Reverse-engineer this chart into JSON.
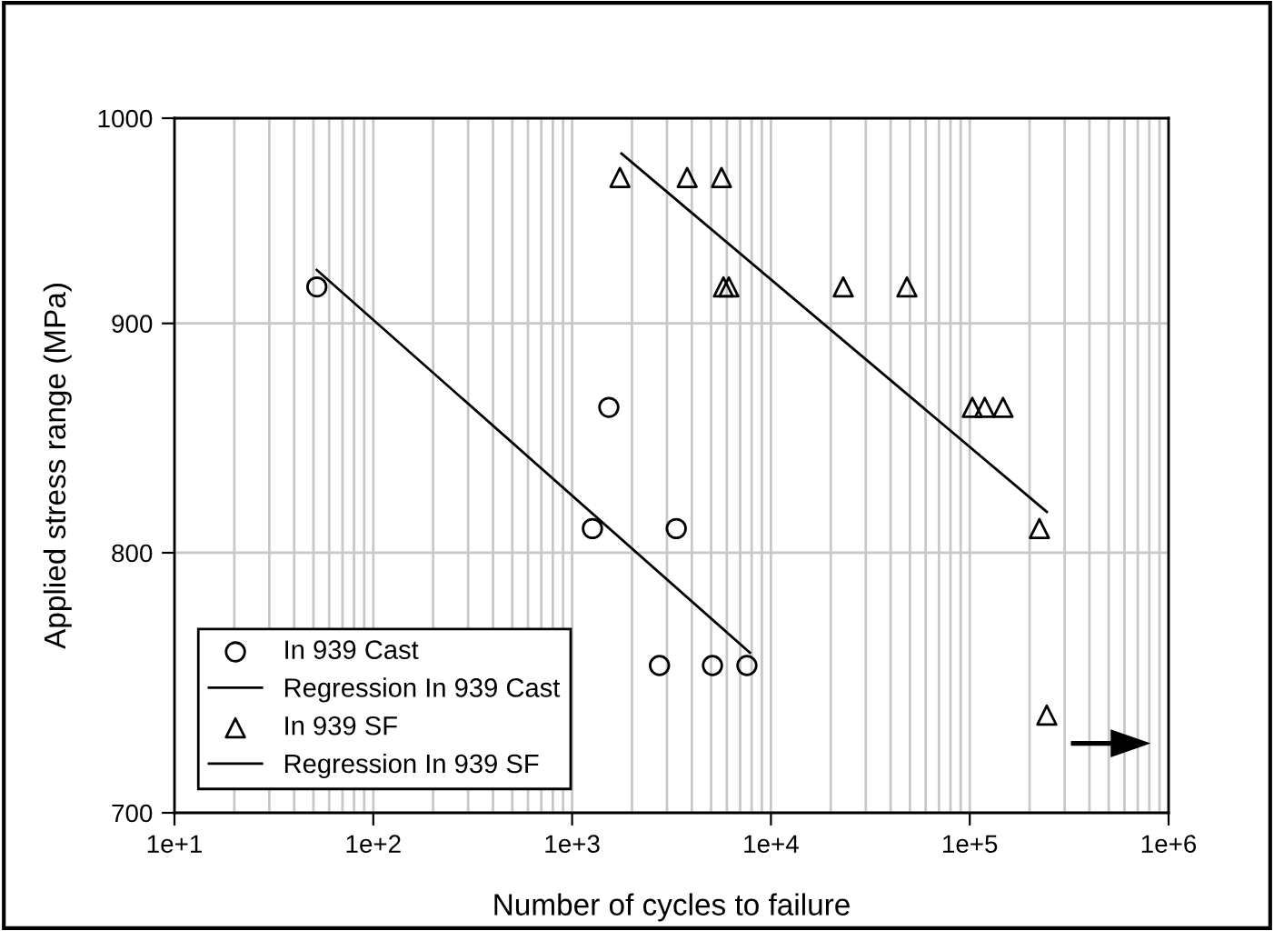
{
  "chart_data": {
    "type": "scatter",
    "xlabel": "Number of cycles to failure",
    "ylabel": "Applied stress range (MPa)",
    "log": "xy",
    "grid": true,
    "legend": "bottom left",
    "xlim": [
      10,
      1000000
    ],
    "xticks": [
      {
        "value": 10,
        "label": "1e+1"
      },
      {
        "value": 100,
        "label": "1e+2"
      },
      {
        "value": 1000,
        "label": "1e+3"
      },
      {
        "value": 10000,
        "label": "1e+4"
      },
      {
        "value": 100000,
        "label": "1e+5"
      },
      {
        "value": 1000000,
        "label": "1e+6"
      }
    ],
    "ylim": [
      700,
      1000
    ],
    "yticks": [
      700,
      800,
      900,
      1000
    ],
    "series": [
      {
        "name": "In 939 Cast",
        "marker": "circle",
        "color": "#000000",
        "x": [
          52,
          1530,
          1265,
          3340,
          2750,
          5080,
          7570
        ],
        "values": [
          917,
          862,
          810,
          810,
          755,
          755,
          755
        ]
      },
      {
        "name": "Regression In 939 Cast",
        "type": "line",
        "marker": "none",
        "color": "#000000",
        "x": [
          52,
          7830
        ],
        "values": [
          925,
          760
        ]
      },
      {
        "name": "In 939 SF",
        "marker": "triangle",
        "color": "#000000",
        "x": [
          1740,
          3790,
          5640,
          5770,
          6140,
          23100,
          48300,
          103000,
          119000,
          147000,
          224000,
          244000
        ],
        "values": [
          970,
          970,
          970,
          917,
          917,
          917,
          917,
          862,
          862,
          862,
          810,
          736
        ]
      },
      {
        "name": "Regression In 939 SF",
        "type": "line",
        "marker": "none",
        "color": "#000000",
        "x": [
          1770,
          244000
        ],
        "values": [
          982,
          817
        ]
      }
    ]
  }
}
